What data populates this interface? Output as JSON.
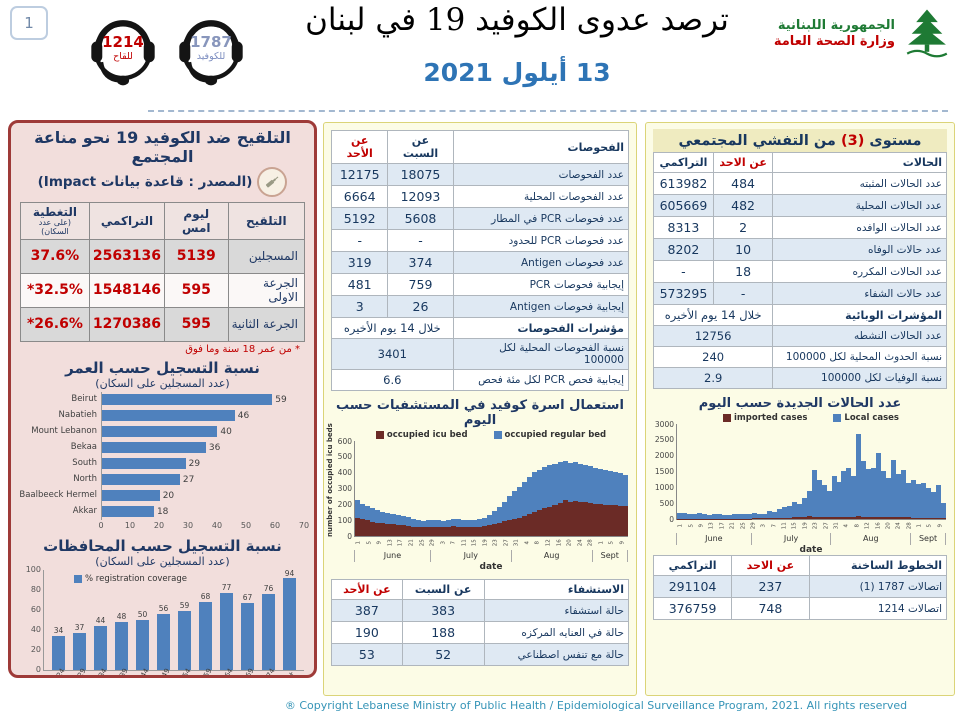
{
  "page": {
    "number": "1",
    "copyright": "® Copyright Lebanese Ministry of Public Health / Epidemiological Surveillance Program, 2021. All rights reserved"
  },
  "header": {
    "title": "ترصد عدوى الكوفيد 19 في لبنان",
    "date": "13 أيلول 2021",
    "covid_hotline": {
      "number": "1787",
      "label": "للكوفيد"
    },
    "vaccine_hotline": {
      "number": "1214",
      "label": "للقاح"
    },
    "ministry": {
      "name_line1": "الجمهورية اللبنانية",
      "name_line2": "وزارة الصحة العامة"
    }
  },
  "vaccination_panel": {
    "title": "التلقيح ضد الكوفيد 19  نحو مناعة المجتمع",
    "subtitle": "(المصدر : قاعدة بيانات Impact)",
    "table": {
      "col_label": "التلقيح",
      "columns": [
        "ليوم امس",
        "التراكمي",
        "التغطية"
      ],
      "coverage_note": "(على عدد السكان)",
      "rows": [
        [
          "المسجلين",
          "5139",
          "2563136",
          "37.6%"
        ],
        [
          "الجرعة الاولى",
          "595",
          "1548146",
          "*32.5%"
        ],
        [
          "الجرعة الثانية",
          "595",
          "1270386",
          "*26.6%"
        ]
      ],
      "footnote": "* من عمر 18 سنة وما فوق"
    }
  },
  "tests_table": {
    "name": "الفحوصات",
    "columns": [
      "عن السبت",
      "عن الأحد"
    ],
    "red_col": 1,
    "alt_start": 0,
    "bold_rows": [
      7
    ],
    "rows": [
      [
        "عدد الفحوصات",
        "18075",
        "12175"
      ],
      [
        "عدد الفحوصات المحلية",
        "12093",
        "6664"
      ],
      [
        "عدد فحوصات PCR في المطار",
        "5608",
        "5192"
      ],
      [
        "عدد فحوصات PCR للحدود",
        "-",
        "-"
      ],
      [
        "عدد فحوصات Antigen",
        "374",
        "319"
      ],
      [
        "إيجابية فحوصات PCR",
        "759",
        "481"
      ],
      [
        "إيجابية فحوصات Antigen",
        "26",
        "3"
      ],
      [
        "مؤشرات الفحوصات",
        "خلال 14 يوم الأخيره"
      ],
      [
        "نسبة الفحوصات المحلية لكل 100000",
        "3401"
      ],
      [
        "إيجابية فحص PCR لكل مئة فحص",
        "6.6"
      ]
    ]
  },
  "hospitalization_table": {
    "name": "الاستشفاء",
    "columns": [
      "عن السبت",
      "عن الأحد"
    ],
    "red_col": 1,
    "alt_start": 0,
    "bold_rows": [],
    "rows": [
      [
        "حالة استشفاء",
        "383",
        "387"
      ],
      [
        "حالة في العنايه المركزه",
        "188",
        "190"
      ],
      [
        "حالة مع تنفس اصطناعي",
        "52",
        "53"
      ]
    ]
  },
  "cases_panel": {
    "title_p1": "مستوى",
    "title_num": "(3)",
    "title_p2": "من التفشي المجتمعي"
  },
  "cases_table": {
    "name": "الحالات",
    "columns": [
      "عن الاحد",
      "التراكمي"
    ],
    "red_col": 0,
    "alt_start": 1,
    "bold_rows": [
      6
    ],
    "rows": [
      [
        "عدد الحالات المثبته",
        "484",
        "613982"
      ],
      [
        "عدد الحالات المحلية",
        "482",
        "605669"
      ],
      [
        "عدد الحالات الوافده",
        "2",
        "8313"
      ],
      [
        "عدد حالات الوفاه",
        "10",
        "8202"
      ],
      [
        "عدد الحالات المكرره",
        "18",
        "-"
      ],
      [
        "عدد حالات الشفاء",
        "-",
        "573295"
      ],
      [
        "المؤشرات الوبائية",
        "خلال 14 يوم الأخيره"
      ],
      [
        "عدد الحالات النشطه",
        "12756"
      ],
      [
        "نسبة الحدوث المحلية لكل 100000",
        "240"
      ],
      [
        "نسبة الوفيات لكل 100000",
        "2.9"
      ]
    ]
  },
  "hotlines_table": {
    "name": "الخطوط الساخنة",
    "columns": [
      "عن الاحد",
      "التراكمي"
    ],
    "red_col": 0,
    "alt_start": 0,
    "bold_rows": [],
    "rows": [
      [
        "اتصالات 1787 (1)",
        "237",
        "291104"
      ],
      [
        "اتصالات 1214",
        "748",
        "376759"
      ]
    ]
  },
  "chart_data": [
    {
      "id": "registration_by_governorate",
      "type": "bar",
      "orientation": "horizontal",
      "title": "نسبة التسجيل حسب العمر",
      "subtitle": "(عدد المسجلين على السكان)",
      "categories": [
        "Beirut",
        "Nabatieh",
        "Mount Lebanon",
        "Bekaa",
        "South",
        "North",
        "Baalbeeck Hermel",
        "Akkar"
      ],
      "values": [
        59,
        46,
        40,
        36,
        29,
        27,
        20,
        18
      ],
      "xlim": [
        0,
        70
      ],
      "xticks": [
        0,
        10,
        20,
        30,
        40,
        50,
        60,
        70
      ],
      "bar_color": "#4F81BD"
    },
    {
      "id": "registration_by_age",
      "type": "bar",
      "orientation": "vertical",
      "title": "نسبة التسجيل حسب المحافظات",
      "subtitle": "(عدد المسجلين على السكان)",
      "legend": [
        {
          "name": "% registration coverage",
          "color": "#4F81BD"
        }
      ],
      "categories": [
        "20-24",
        "25-29",
        "30-34",
        "35-39",
        "40-44",
        "45-49",
        "50-54",
        "55-59",
        "60-64",
        "65-69",
        "70-74",
        "75+"
      ],
      "values": [
        34,
        37,
        44,
        48,
        50,
        56,
        59,
        68,
        77,
        67,
        76,
        94
      ],
      "ylim": [
        0,
        100
      ],
      "yticks": [
        0,
        20,
        40,
        60,
        80,
        100
      ],
      "bar_color": "#4F81BD"
    },
    {
      "id": "hospital_beds",
      "type": "stacked-bar",
      "title": "استعمال اسرة كوفيد في المستشفيات حسب اليوم",
      "ylabel": "number of occupied icu beds",
      "xlabel": "date",
      "ylim": [
        0,
        600
      ],
      "yticks": [
        0,
        100,
        200,
        300,
        400,
        500,
        600
      ],
      "months": [
        {
          "name": "June",
          "points": 15
        },
        {
          "name": "July",
          "points": 16
        },
        {
          "name": "Aug",
          "points": 16
        },
        {
          "name": "Sept",
          "points": 7
        }
      ],
      "xticks": [
        "1",
        "5",
        "9",
        "13",
        "17",
        "21",
        "25",
        "29",
        "3",
        "7",
        "11",
        "15",
        "19",
        "23",
        "27",
        "31",
        "4",
        "8",
        "12",
        "16",
        "20",
        "24",
        "28",
        "1",
        "5",
        "9"
      ],
      "note": "values estimated from chart, sampled every ~2 days, Jun 1 - Sep 13 2021",
      "series": [
        {
          "name": "occupied icu bed",
          "color": "#6B2B26",
          "values": [
            115,
            105,
            98,
            90,
            85,
            80,
            78,
            75,
            72,
            68,
            64,
            60,
            57,
            55,
            57,
            58,
            56,
            57,
            60,
            62,
            60,
            58,
            56,
            55,
            58,
            63,
            68,
            75,
            83,
            92,
            100,
            106,
            115,
            125,
            136,
            150,
            162,
            175,
            186,
            196,
            210,
            225,
            215,
            220,
            216,
            212,
            209,
            205,
            200,
            197,
            195,
            193,
            190,
            188
          ]
        },
        {
          "name": "occupied regular bed",
          "color": "#4F81BD",
          "values": [
            110,
            100,
            94,
            88,
            80,
            72,
            67,
            65,
            62,
            60,
            54,
            48,
            43,
            40,
            43,
            46,
            44,
            41,
            43,
            44,
            48,
            44,
            44,
            44,
            48,
            53,
            67,
            81,
            103,
            124,
            152,
            176,
            197,
            217,
            236,
            252,
            258,
            261,
            260,
            256,
            260,
            251,
            247,
            246,
            236,
            234,
            231,
            225,
            222,
            219,
            215,
            211,
            205,
            197
          ]
        }
      ]
    },
    {
      "id": "new_cases",
      "type": "stacked-bar",
      "title": "عدد الحالات الجديدة حسب اليوم",
      "xlabel": "date",
      "ylim": [
        0,
        3000
      ],
      "yticks": [
        0,
        500,
        1000,
        1500,
        2000,
        2500,
        3000
      ],
      "months": [
        {
          "name": "June",
          "points": 15
        },
        {
          "name": "July",
          "points": 16
        },
        {
          "name": "Aug",
          "points": 16
        },
        {
          "name": "Sept",
          "points": 7
        }
      ],
      "xticks": [
        "1",
        "5",
        "9",
        "13",
        "17",
        "21",
        "25",
        "29",
        "3",
        "7",
        "11",
        "15",
        "19",
        "23",
        "27",
        "31",
        "4",
        "8",
        "12",
        "16",
        "20",
        "24",
        "28",
        "1",
        "5",
        "9"
      ],
      "note": "values estimated from chart, sampled every ~2 days, Jun 1 - Sep 13 2021",
      "series": [
        {
          "name": "imported cases",
          "color": "#6B2B26",
          "values": [
            15,
            12,
            10,
            14,
            12,
            10,
            12,
            15,
            10,
            12,
            10,
            12,
            14,
            12,
            15,
            18,
            20,
            22,
            25,
            30,
            35,
            40,
            45,
            60,
            55,
            70,
            80,
            60,
            70,
            65,
            60,
            55,
            60,
            65,
            70,
            60,
            80,
            70,
            65,
            60,
            70,
            60,
            55,
            65,
            60,
            55,
            50,
            45,
            40,
            45,
            40,
            42,
            38,
            35
          ]
        },
        {
          "name": "Local cases",
          "color": "#4F81BD",
          "values": [
            190,
            170,
            160,
            150,
            175,
            140,
            120,
            155,
            150,
            130,
            125,
            140,
            150,
            140,
            155,
            160,
            150,
            145,
            230,
            190,
            280,
            330,
            360,
            480,
            430,
            600,
            800,
            1500,
            1150,
            1000,
            820,
            1300,
            1100,
            1450,
            1550,
            1300,
            2600,
            1750,
            1500,
            1560,
            2000,
            1450,
            1250,
            1800,
            1350,
            1500,
            1100,
            1200,
            1050,
            1100,
            950,
            800,
            1050,
            480
          ]
        }
      ]
    }
  ]
}
